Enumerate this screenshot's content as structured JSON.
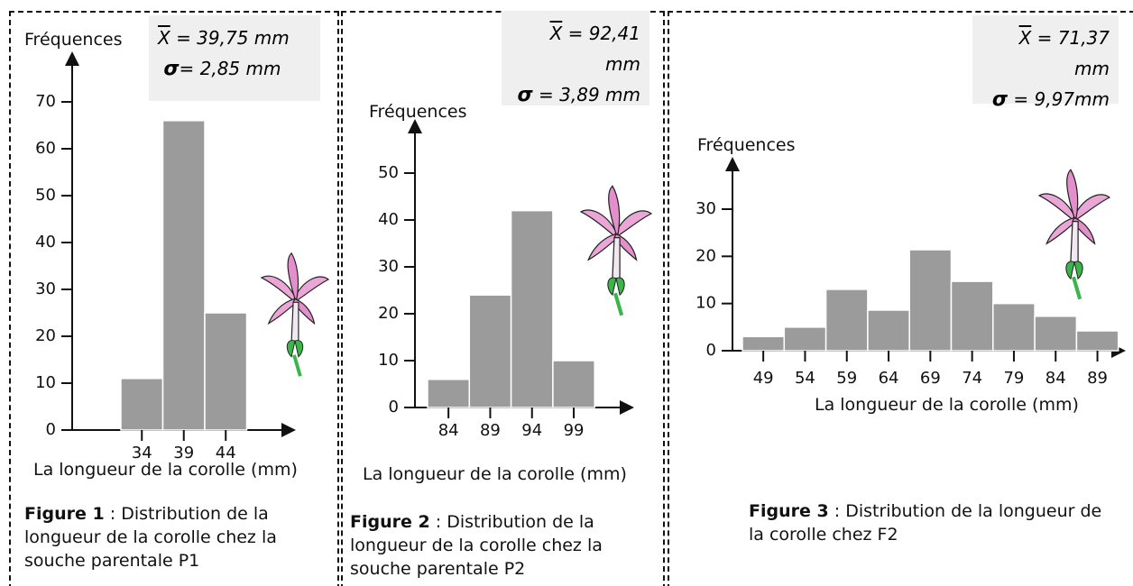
{
  "chart_data": [
    {
      "type": "bar",
      "y_label": "Fréquences",
      "x_label": "La longueur  de la corolle (mm)",
      "mean_symbol": "X",
      "mean": "= 39,75 mm",
      "sd_symbol": "σ",
      "sd": "= 2,85 mm",
      "caption_label": "Figure 1",
      "caption": ": Distribution de la longueur   de la corolle chez la souche parentale P1",
      "categories": [
        "34",
        "39",
        "44"
      ],
      "values": [
        11,
        66,
        25
      ],
      "color": "#9b9b9b",
      "ylim": [
        0,
        70
      ],
      "yticks": [
        0,
        10,
        20,
        30,
        40,
        50,
        60,
        70
      ]
    },
    {
      "type": "bar",
      "y_label": "Fréquences",
      "x_label": "La longueur  de la corolle (mm)",
      "mean_symbol": "X",
      "mean": "= 92,41 mm",
      "sd_symbol": "σ",
      "sd": "= 3,89 mm",
      "caption_label": "Figure 2",
      "caption": ": Distribution de la longueur de la corolle chez la souche parentale P2",
      "categories": [
        "84",
        "89",
        "94",
        "99"
      ],
      "values": [
        6,
        24,
        42,
        10
      ],
      "color": "#9b9b9b",
      "ylim": [
        0,
        50
      ],
      "yticks": [
        0,
        10,
        20,
        30,
        40,
        50
      ]
    },
    {
      "type": "bar",
      "y_label": "Fréquences",
      "x_label": "La longueur  de la corolle (mm)",
      "mean_symbol": "X",
      "mean": "= 71,37 mm",
      "sd_symbol": "σ",
      "sd": "= 9,97mm",
      "caption_label": "Figure 3",
      "caption": ": Distribution de la longueur de la corolle chez F2",
      "categories": [
        "49",
        "54",
        "59",
        "64",
        "69",
        "74",
        "79",
        "84",
        "89"
      ],
      "values": [
        3,
        5,
        13,
        8.6,
        21.4,
        14.7,
        10,
        7.3,
        4.2
      ],
      "color": "#9b9b9b",
      "ylim": [
        0,
        30
      ],
      "yticks": [
        0,
        10,
        20,
        30
      ]
    }
  ]
}
